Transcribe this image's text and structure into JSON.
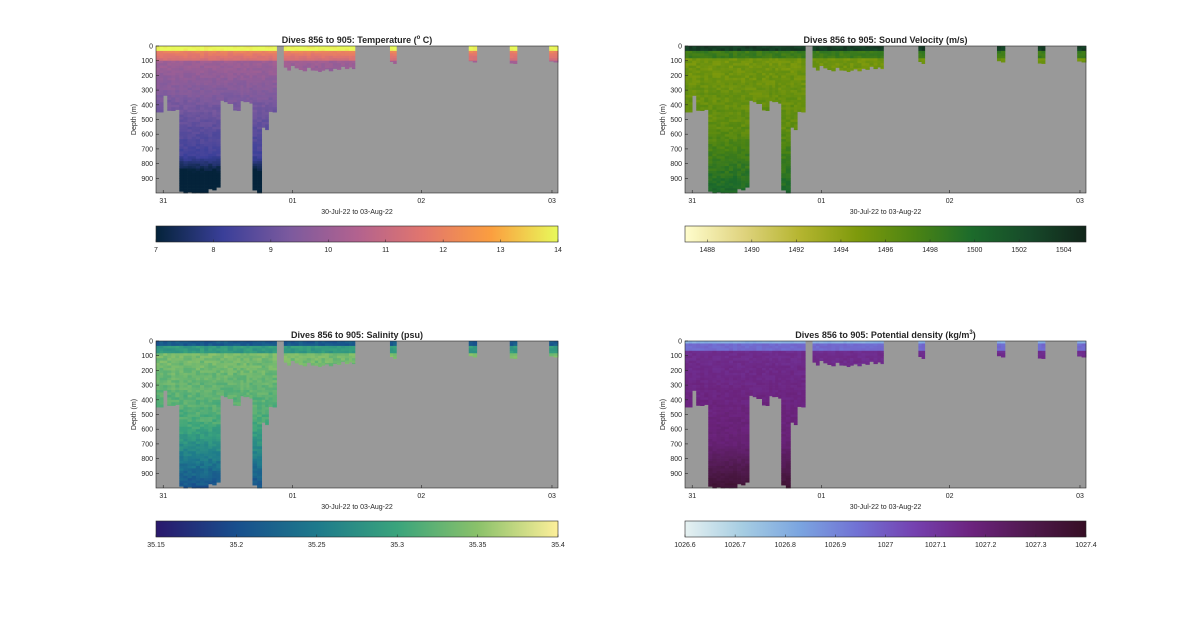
{
  "chart_data": [
    {
      "type": "heatmap",
      "title": "Dives 856 to 905: Temperature (",
      "title_sup": "o",
      "title_tail": " C)",
      "ylabel": "Depth (m)",
      "xlabel": "30-Jul-22 to 03-Aug-22",
      "x_ticks": [
        "31",
        "01",
        "02",
        "03"
      ],
      "y_ticks": [
        "0",
        "100",
        "200",
        "300",
        "400",
        "500",
        "600",
        "700",
        "800",
        "900"
      ],
      "ylim": [
        0,
        1000
      ],
      "colormap": "thermal",
      "colorbar_ticks": [
        "7",
        "8",
        "9",
        "10",
        "11",
        "12",
        "13",
        "14"
      ],
      "clim": [
        7,
        14
      ],
      "colors": [
        "#04233a",
        "#3a3f99",
        "#7c5a9e",
        "#b2628f",
        "#e2766d",
        "#fb9e3f",
        "#e8fa5b"
      ]
    },
    {
      "type": "heatmap",
      "title": "Dives 856 to 905: Sound Velocity (m/s)",
      "title_sup": "",
      "title_tail": "",
      "ylabel": "Depth (m)",
      "xlabel": "30-Jul-22 to 03-Aug-22",
      "x_ticks": [
        "31",
        "01",
        "02",
        "03"
      ],
      "y_ticks": [
        "0",
        "100",
        "200",
        "300",
        "400",
        "500",
        "600",
        "700",
        "800",
        "900"
      ],
      "ylim": [
        0,
        1000
      ],
      "colormap": "speed",
      "colorbar_ticks": [
        "1488",
        "1490",
        "1492",
        "1494",
        "1496",
        "1498",
        "1500",
        "1502",
        "1504"
      ],
      "clim": [
        1487,
        1505
      ],
      "colors": [
        "#fffdcd",
        "#e0d480",
        "#b5b530",
        "#7e9a0c",
        "#4c8413",
        "#1c6b2b",
        "#174a2a",
        "#11251a"
      ]
    },
    {
      "type": "heatmap",
      "title": "Dives 856 to 905: Salinity (psu)",
      "title_sup": "",
      "title_tail": "",
      "ylabel": "Depth (m)",
      "xlabel": "30-Jul-22 to 03-Aug-22",
      "x_ticks": [
        "31",
        "01",
        "02",
        "03"
      ],
      "y_ticks": [
        "0",
        "100",
        "200",
        "300",
        "400",
        "500",
        "600",
        "700",
        "800",
        "900"
      ],
      "ylim": [
        0,
        1000
      ],
      "colormap": "haline",
      "colorbar_ticks": [
        "35.15",
        "35.2",
        "35.25",
        "35.3",
        "35.35",
        "35.4"
      ],
      "clim": [
        35.15,
        35.4
      ],
      "colors": [
        "#2a186c",
        "#184f8d",
        "#1e7a8c",
        "#3aa47c",
        "#8ac16a",
        "#fdef9a"
      ]
    },
    {
      "type": "heatmap",
      "title": "Dives 856 to 905: Potential density (kg/m",
      "title_sup": "3",
      "title_tail": ")",
      "ylabel": "Depth (m)",
      "xlabel": "30-Jul-22 to 03-Aug-22",
      "x_ticks": [
        "31",
        "01",
        "02",
        "03"
      ],
      "y_ticks": [
        "0",
        "100",
        "200",
        "300",
        "400",
        "500",
        "600",
        "700",
        "800",
        "900"
      ],
      "ylim": [
        0,
        1000
      ],
      "colormap": "dense",
      "colorbar_ticks": [
        "1026.6",
        "1026.7",
        "1026.8",
        "1026.9",
        "1027",
        "1027.1",
        "1027.2",
        "1027.3",
        "1027.4"
      ],
      "clim": [
        1026.6,
        1027.4
      ],
      "colors": [
        "#e6f1f1",
        "#a6cde2",
        "#7ba5e0",
        "#7172d4",
        "#7541b0",
        "#6c237e",
        "#501a4e",
        "#360e24"
      ]
    }
  ],
  "style": {
    "missing_color": "#999999",
    "text_color": "#262626",
    "axis_color": "#262626"
  }
}
